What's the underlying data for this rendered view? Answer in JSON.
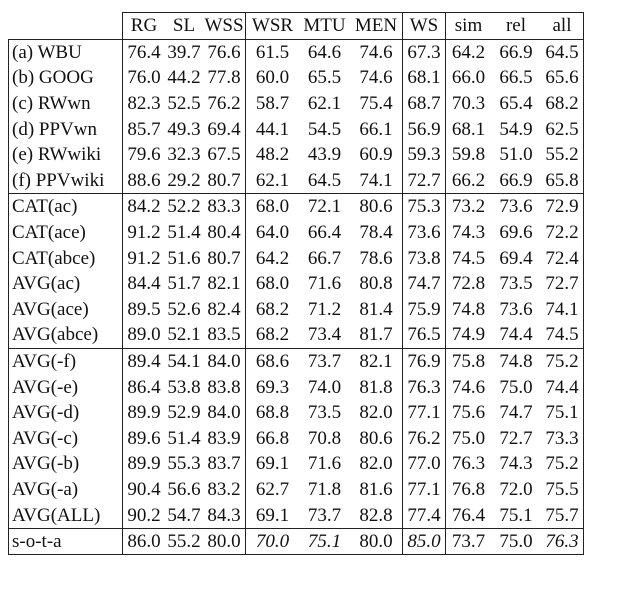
{
  "table": {
    "headers": [
      "",
      "RG",
      "SL",
      "WSS",
      "WSR",
      "MTU",
      "MEN",
      "WS",
      "sim",
      "rel",
      "all"
    ],
    "groups": [
      [
        {
          "label": "(a) WBU",
          "values": [
            "76.4",
            "39.7",
            "76.6",
            "61.5",
            "64.6",
            "74.6",
            "67.3",
            "64.2",
            "66.9",
            "64.5"
          ],
          "bold": [],
          "italic": []
        },
        {
          "label": "(b) GOOG",
          "values": [
            "76.0",
            "44.2",
            "77.8",
            "60.0",
            "65.5",
            "74.6",
            "68.1",
            "66.0",
            "66.5",
            "65.6"
          ],
          "bold": [],
          "italic": []
        },
        {
          "label": "(c) RWwn",
          "values": [
            "82.3",
            "52.5",
            "76.2",
            "58.7",
            "62.1",
            "75.4",
            "68.7",
            "70.3",
            "65.4",
            "68.2"
          ],
          "bold": [],
          "italic": []
        },
        {
          "label": "(d) PPVwn",
          "values": [
            "85.7",
            "49.3",
            "69.4",
            "44.1",
            "54.5",
            "66.1",
            "56.9",
            "68.1",
            "54.9",
            "62.5"
          ],
          "bold": [],
          "italic": []
        },
        {
          "label": "(e) RWwiki",
          "values": [
            "79.6",
            "32.3",
            "67.5",
            "48.2",
            "43.9",
            "60.9",
            "59.3",
            "59.8",
            "51.0",
            "55.2"
          ],
          "bold": [],
          "italic": []
        },
        {
          "label": "(f) PPVwiki",
          "values": [
            "88.6",
            "29.2",
            "80.7",
            "62.1",
            "64.5",
            "74.1",
            "72.7",
            "66.2",
            "66.9",
            "65.8"
          ],
          "bold": [],
          "italic": []
        }
      ],
      [
        {
          "label": "CAT(ac)",
          "values": [
            "84.2",
            "52.2",
            "83.3",
            "68.0",
            "72.1",
            "80.6",
            "75.3",
            "73.2",
            "73.6",
            "72.9"
          ],
          "bold": [
            8
          ],
          "italic": []
        },
        {
          "label": "CAT(ace)",
          "values": [
            "91.2",
            "51.4",
            "80.4",
            "64.0",
            "66.4",
            "78.4",
            "73.6",
            "74.3",
            "69.6",
            "72.2"
          ],
          "bold": [
            0
          ],
          "italic": []
        },
        {
          "label": "CAT(abce)",
          "values": [
            "91.2",
            "51.6",
            "80.7",
            "64.2",
            "66.7",
            "78.6",
            "73.8",
            "74.5",
            "69.4",
            "72.4"
          ],
          "bold": [
            0
          ],
          "italic": []
        },
        {
          "label": "AVG(ac)",
          "values": [
            "84.4",
            "51.7",
            "82.1",
            "68.0",
            "71.6",
            "80.8",
            "74.7",
            "72.8",
            "73.5",
            "72.7"
          ],
          "bold": [],
          "italic": []
        },
        {
          "label": "AVG(ace)",
          "values": [
            "89.5",
            "52.6",
            "82.4",
            "68.2",
            "71.2",
            "81.4",
            "75.9",
            "74.8",
            "73.6",
            "74.1"
          ],
          "bold": [],
          "italic": []
        },
        {
          "label": "AVG(abce)",
          "values": [
            "89.0",
            "52.1",
            "83.5",
            "68.2",
            "73.4",
            "81.7",
            "76.5",
            "74.9",
            "74.4",
            "74.5"
          ],
          "bold": [],
          "italic": []
        }
      ],
      [
        {
          "label": "AVG(-f)",
          "values": [
            "89.4",
            "54.1",
            "84.0",
            "68.6",
            "73.7",
            "82.1",
            "76.9",
            "75.8",
            "74.8",
            "75.2"
          ],
          "bold": [],
          "italic": []
        },
        {
          "label": "AVG(-e)",
          "values": [
            "86.4",
            "53.8",
            "83.8",
            "69.3",
            "74.0",
            "81.8",
            "76.3",
            "74.6",
            "75.0",
            "74.4"
          ],
          "bold": [
            3,
            4
          ],
          "italic": []
        },
        {
          "label": "AVG(-d)",
          "values": [
            "89.9",
            "52.9",
            "84.0",
            "68.8",
            "73.5",
            "82.0",
            "77.1",
            "75.6",
            "74.7",
            "75.1"
          ],
          "bold": [],
          "italic": []
        },
        {
          "label": "AVG(-c)",
          "values": [
            "89.6",
            "51.4",
            "83.9",
            "66.8",
            "70.8",
            "80.6",
            "76.2",
            "75.0",
            "72.7",
            "73.3"
          ],
          "bold": [],
          "italic": []
        },
        {
          "label": "AVG(-b)",
          "values": [
            "89.9",
            "55.3",
            "83.7",
            "69.1",
            "71.6",
            "82.0",
            "77.0",
            "76.3",
            "74.3",
            "75.2"
          ],
          "bold": [],
          "italic": []
        },
        {
          "label": "AVG(-a)",
          "values": [
            "90.4",
            "56.6",
            "83.2",
            "62.7",
            "71.8",
            "81.6",
            "77.1",
            "76.8",
            "72.0",
            "75.5"
          ],
          "bold": [
            1,
            7
          ],
          "italic": []
        },
        {
          "label": "AVG(ALL)",
          "values": [
            "90.2",
            "54.7",
            "84.3",
            "69.1",
            "73.7",
            "82.8",
            "77.4",
            "76.4",
            "75.1",
            "75.7"
          ],
          "bold": [
            2,
            5,
            6,
            8,
            9
          ],
          "italic": []
        }
      ],
      [
        {
          "label": "s-o-t-a",
          "values": [
            "86.0",
            "55.2",
            "80.0",
            "70.0",
            "75.1",
            "80.0",
            "85.0",
            "73.7",
            "75.0",
            "76.3"
          ],
          "bold": [],
          "italic": [
            3,
            4,
            6,
            9
          ]
        }
      ]
    ]
  }
}
